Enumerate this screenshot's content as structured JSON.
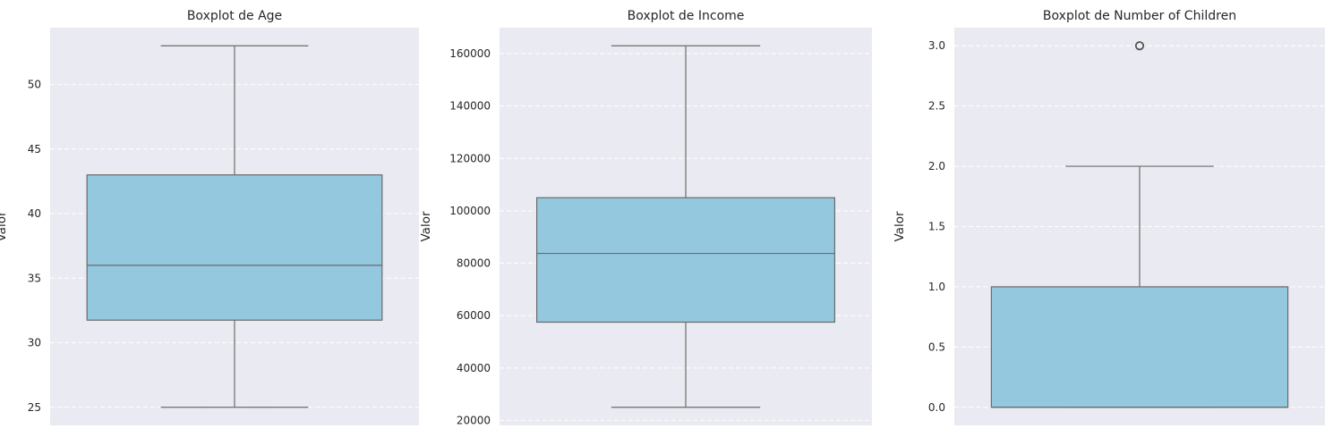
{
  "chart_data": [
    {
      "type": "boxplot",
      "title": "Boxplot de Age",
      "ylabel": "Valor",
      "ylim": [
        23.6,
        54.4
      ],
      "yticks": [
        25,
        30,
        35,
        40,
        45,
        50
      ],
      "ytick_labels": [
        "25",
        "30",
        "35",
        "40",
        "45",
        "50"
      ],
      "box": {
        "whisker_low": 25,
        "q1": 31.75,
        "median": 36,
        "q3": 43,
        "whisker_high": 53
      },
      "outliers": [],
      "box_color": "#93c8de",
      "grid": true
    },
    {
      "type": "boxplot",
      "title": "Boxplot de Income",
      "ylabel": "Valor",
      "ylim": [
        18100,
        169900
      ],
      "yticks": [
        20000,
        40000,
        60000,
        80000,
        100000,
        120000,
        140000,
        160000
      ],
      "ytick_labels": [
        "20000",
        "40000",
        "60000",
        "80000",
        "100000",
        "120000",
        "140000",
        "160000"
      ],
      "box": {
        "whisker_low": 25000,
        "q1": 57500,
        "median": 83750,
        "q3": 105000,
        "whisker_high": 163000
      },
      "outliers": [],
      "box_color": "#93c8de",
      "grid": true
    },
    {
      "type": "boxplot",
      "title": "Boxplot de Number of Children",
      "ylabel": "Valor",
      "ylim": [
        -0.15,
        3.15
      ],
      "yticks": [
        0.0,
        0.5,
        1.0,
        1.5,
        2.0,
        2.5,
        3.0
      ],
      "ytick_labels": [
        "0.0",
        "0.5",
        "1.0",
        "1.5",
        "2.0",
        "2.5",
        "3.0"
      ],
      "box": {
        "whisker_low": 0,
        "q1": 0,
        "median": 0,
        "q3": 1,
        "whisker_high": 2
      },
      "outliers": [
        3
      ],
      "box_color": "#93c8de",
      "grid": true
    }
  ]
}
